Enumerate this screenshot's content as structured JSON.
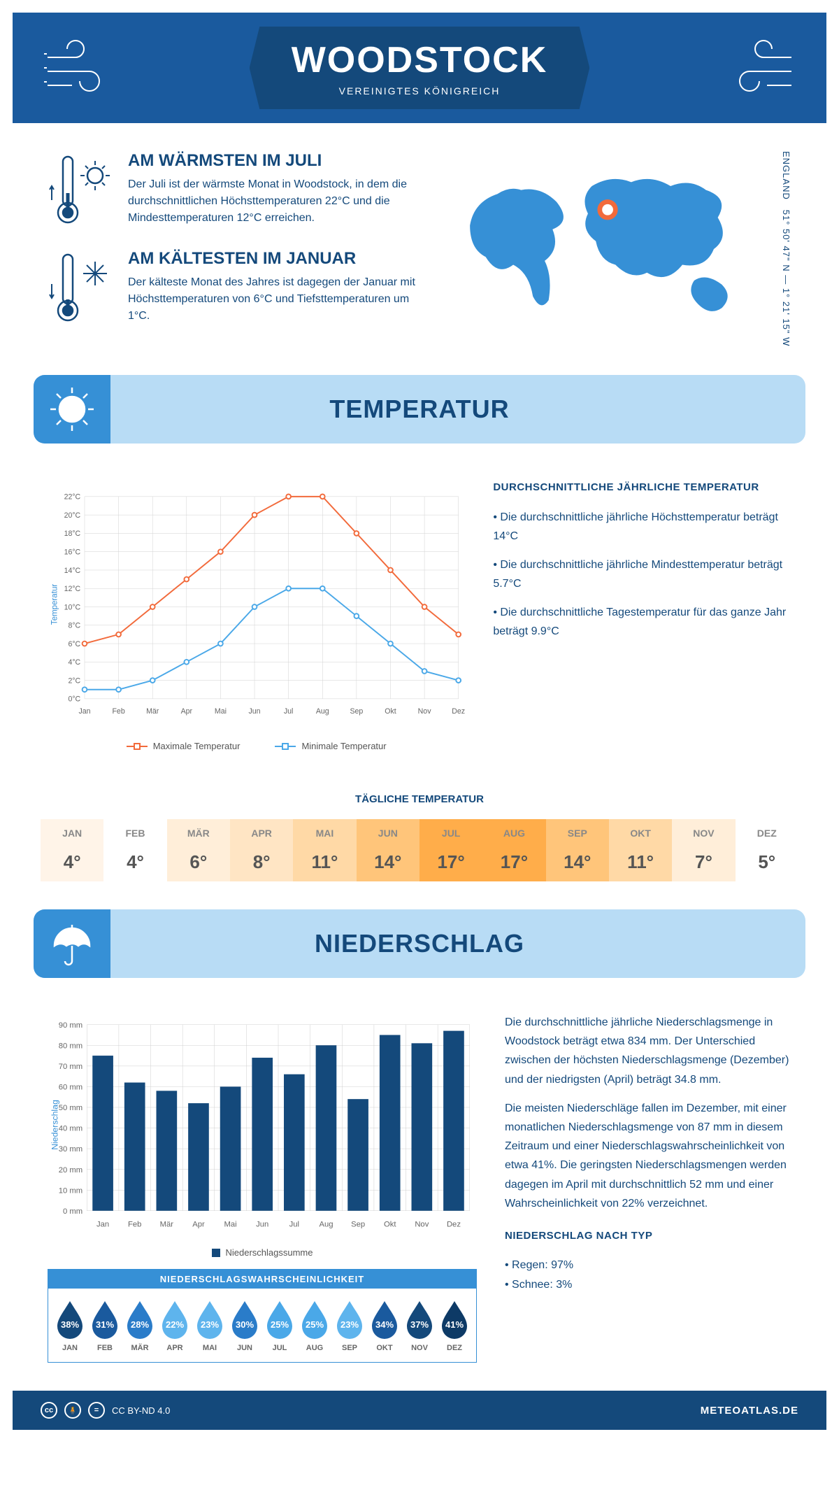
{
  "header": {
    "title": "WOODSTOCK",
    "subtitle": "VEREINIGTES KÖNIGREICH",
    "coords_line1": "ENGLAND",
    "coords_line2": "51° 50' 47\" N — 1° 21' 15\" W"
  },
  "intro": {
    "warm_title": "AM WÄRMSTEN IM JULI",
    "warm_text": "Der Juli ist der wärmste Monat in Woodstock, in dem die durchschnittlichen Höchsttemperaturen 22°C und die Mindesttemperaturen 12°C erreichen.",
    "cold_title": "AM KÄLTESTEN IM JANUAR",
    "cold_text": "Der kälteste Monat des Jahres ist dagegen der Januar mit Höchsttemperaturen von 6°C und Tiefsttemperaturen um 1°C."
  },
  "temperature": {
    "section_title": "TEMPERATUR",
    "chart": {
      "type": "line",
      "months": [
        "Jan",
        "Feb",
        "Mär",
        "Apr",
        "Mai",
        "Jun",
        "Jul",
        "Aug",
        "Sep",
        "Okt",
        "Nov",
        "Dez"
      ],
      "max_series": {
        "label": "Maximale Temperatur",
        "color": "#f26a3b",
        "values": [
          6,
          7,
          10,
          13,
          16,
          20,
          22,
          22,
          18,
          14,
          10,
          7
        ]
      },
      "min_series": {
        "label": "Minimale Temperatur",
        "color": "#4aa8e8",
        "values": [
          1,
          1,
          2,
          4,
          6,
          10,
          12,
          12,
          9,
          6,
          3,
          2
        ]
      },
      "ylim": [
        0,
        22
      ],
      "ytick_step": 2,
      "y_unit": "°C",
      "y_axis_title": "Temperatur",
      "grid_color": "#d0d0d0",
      "marker": "circle",
      "line_width": 2
    },
    "side": {
      "heading": "DURCHSCHNITTLICHE JÄHRLICHE TEMPERATUR",
      "b1": "• Die durchschnittliche jährliche Höchsttemperatur beträgt 14°C",
      "b2": "• Die durchschnittliche jährliche Mindesttemperatur beträgt 5.7°C",
      "b3": "• Die durchschnittliche Tagestemperatur für das ganze Jahr beträgt 9.9°C"
    },
    "daily": {
      "heading": "TÄGLICHE TEMPERATUR",
      "cells": [
        {
          "m": "JAN",
          "v": "4°",
          "c": "#fff4e8"
        },
        {
          "m": "FEB",
          "v": "4°",
          "c": "#ffffff"
        },
        {
          "m": "MÄR",
          "v": "6°",
          "c": "#ffeed9"
        },
        {
          "m": "APR",
          "v": "8°",
          "c": "#ffe5c4"
        },
        {
          "m": "MAI",
          "v": "11°",
          "c": "#ffd9a6"
        },
        {
          "m": "JUN",
          "v": "14°",
          "c": "#ffc57a"
        },
        {
          "m": "JUL",
          "v": "17°",
          "c": "#ffad4a"
        },
        {
          "m": "AUG",
          "v": "17°",
          "c": "#ffad4a"
        },
        {
          "m": "SEP",
          "v": "14°",
          "c": "#ffc57a"
        },
        {
          "m": "OKT",
          "v": "11°",
          "c": "#ffd9a6"
        },
        {
          "m": "NOV",
          "v": "7°",
          "c": "#ffeed9"
        },
        {
          "m": "DEZ",
          "v": "5°",
          "c": "#ffffff"
        }
      ]
    }
  },
  "precip": {
    "section_title": "NIEDERSCHLAG",
    "chart": {
      "type": "bar",
      "months": [
        "Jan",
        "Feb",
        "Mär",
        "Apr",
        "Mai",
        "Jun",
        "Jul",
        "Aug",
        "Sep",
        "Okt",
        "Nov",
        "Dez"
      ],
      "values": [
        75,
        62,
        58,
        52,
        60,
        74,
        66,
        80,
        54,
        85,
        81,
        87
      ],
      "bar_color": "#14497b",
      "ylim": [
        0,
        90
      ],
      "ytick_step": 10,
      "y_unit": " mm",
      "y_axis_title": "Niederschlag",
      "legend_label": "Niederschlagssumme",
      "grid_color": "#d0d0d0"
    },
    "text": {
      "p1": "Die durchschnittliche jährliche Niederschlagsmenge in Woodstock beträgt etwa 834 mm. Der Unterschied zwischen der höchsten Niederschlagsmenge (Dezember) und der niedrigsten (April) beträgt 34.8 mm.",
      "p2": "Die meisten Niederschläge fallen im Dezember, mit einer monatlichen Niederschlagsmenge von 87 mm in diesem Zeitraum und einer Niederschlagswahrscheinlichkeit von etwa 41%. Die geringsten Niederschlagsmengen werden dagegen im April mit durchschnittlich 52 mm und einer Wahrscheinlichkeit von 22% verzeichnet.",
      "type_head": "NIEDERSCHLAG NACH TYP",
      "t1": "• Regen: 97%",
      "t2": "• Schnee: 3%"
    },
    "probability": {
      "title": "NIEDERSCHLAGSWAHRSCHEINLICHKEIT",
      "items": [
        {
          "m": "JAN",
          "p": "38%",
          "c": "#14497b"
        },
        {
          "m": "FEB",
          "p": "31%",
          "c": "#1a5a9e"
        },
        {
          "m": "MÄR",
          "p": "28%",
          "c": "#2a7cc9"
        },
        {
          "m": "APR",
          "p": "22%",
          "c": "#5eb4ed"
        },
        {
          "m": "MAI",
          "p": "23%",
          "c": "#5eb4ed"
        },
        {
          "m": "JUN",
          "p": "30%",
          "c": "#2a7cc9"
        },
        {
          "m": "JUL",
          "p": "25%",
          "c": "#4aa8e8"
        },
        {
          "m": "AUG",
          "p": "25%",
          "c": "#4aa8e8"
        },
        {
          "m": "SEP",
          "p": "23%",
          "c": "#5eb4ed"
        },
        {
          "m": "OKT",
          "p": "34%",
          "c": "#1a5a9e"
        },
        {
          "m": "NOV",
          "p": "37%",
          "c": "#14497b"
        },
        {
          "m": "DEZ",
          "p": "41%",
          "c": "#0d3a66"
        }
      ]
    }
  },
  "footer": {
    "license": "CC BY-ND 4.0",
    "site": "METEOATLAS.DE"
  }
}
